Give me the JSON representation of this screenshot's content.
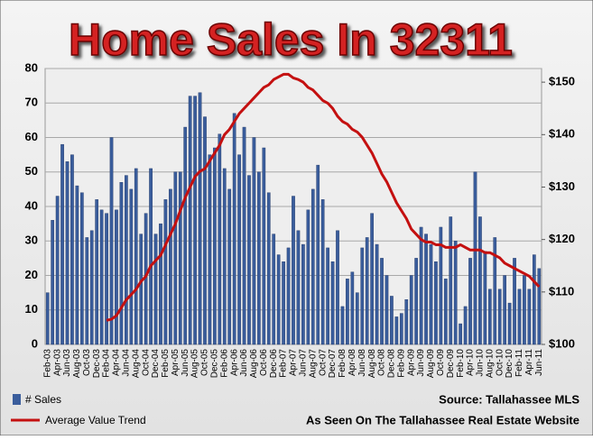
{
  "chart_data": {
    "type": "bar-line",
    "title": "Home Sales In 32311",
    "categories": [
      "Feb-03",
      null,
      "Apr-03",
      null,
      "Jun-03",
      null,
      "Aug-03",
      null,
      "Oct-03",
      null,
      "Dec-03",
      null,
      "Feb-04",
      null,
      "Apr-04",
      null,
      "Jun-04",
      null,
      "Aug-04",
      null,
      "Oct-04",
      null,
      "Dec-04",
      null,
      "Feb-05",
      null,
      "Apr-05",
      null,
      "Jun-05",
      null,
      "Aug-05",
      null,
      "Oct-05",
      null,
      "Dec-05",
      null,
      "Feb-06",
      null,
      "Apr-06",
      null,
      "Jun-06",
      null,
      "Aug-06",
      null,
      "Oct-06",
      null,
      "Dec-06",
      null,
      "Feb-07",
      null,
      "Apr-07",
      null,
      "Jun-07",
      null,
      "Aug-07",
      null,
      "Oct-07",
      null,
      "Dec-07",
      null,
      "Feb-08",
      null,
      "Apr-08",
      null,
      "Jun-08",
      null,
      "Aug-08",
      null,
      "Oct-08",
      null,
      "Dec-08",
      null,
      "Feb-09",
      null,
      "Apr-09",
      null,
      "Jun-09",
      null,
      "Aug-09",
      null,
      "Oct-09",
      null,
      "Dec-09",
      null,
      "Feb-10",
      null,
      "Apr-10",
      null,
      "Jun-10",
      null,
      "Aug-10",
      null,
      "Oct-10",
      null,
      "Dec-10",
      null,
      "Feb-11",
      null,
      "Apr-11",
      null,
      "Jun-11"
    ],
    "series": [
      {
        "name": "# Sales",
        "kind": "bar",
        "color": "#3a5d9c",
        "values": [
          15,
          36,
          43,
          58,
          53,
          55,
          46,
          44,
          31,
          33,
          42,
          39,
          38,
          60,
          39,
          47,
          49,
          45,
          51,
          32,
          38,
          51,
          32,
          35,
          42,
          45,
          50,
          50,
          63,
          72,
          72,
          73,
          66,
          55,
          57,
          61,
          51,
          45,
          67,
          55,
          63,
          49,
          60,
          50,
          57,
          44,
          32,
          26,
          24,
          28,
          43,
          33,
          29,
          39,
          45,
          52,
          42,
          28,
          24,
          33,
          11,
          19,
          21,
          15,
          28,
          31,
          38,
          29,
          25,
          20,
          14,
          8,
          9,
          13,
          20,
          25,
          34,
          32,
          29,
          24,
          34,
          19,
          37,
          30,
          6,
          11,
          25,
          50,
          37,
          27,
          16,
          31,
          16,
          20,
          12,
          25,
          16,
          20,
          16,
          26,
          22
        ]
      },
      {
        "name": "Average Value Trend",
        "kind": "line",
        "axis": "y2",
        "color": "#c41010",
        "values": [
          null,
          null,
          null,
          null,
          null,
          null,
          null,
          null,
          null,
          null,
          null,
          null,
          104.6,
          104.8,
          105.5,
          107,
          108.5,
          109.5,
          110.5,
          112,
          113,
          115,
          116,
          117,
          119,
          121,
          123,
          125.5,
          128,
          130,
          132,
          133,
          133.5,
          135,
          136.5,
          138,
          140,
          141,
          142.5,
          144,
          145,
          146,
          147,
          148,
          149,
          149.5,
          150.5,
          151,
          151.5,
          151.5,
          150.8,
          150.5,
          150,
          149,
          148.5,
          147.5,
          146.5,
          146,
          145,
          143.5,
          142.5,
          142,
          141,
          140.5,
          139.5,
          138,
          136.5,
          134.5,
          132.5,
          131,
          129,
          127,
          125.5,
          124,
          122,
          121,
          120,
          119.5,
          119.5,
          119,
          119,
          118.5,
          118.5,
          118.5,
          119,
          118.5,
          118,
          118,
          118,
          117.5,
          117.5,
          117,
          116.5,
          115.5,
          115,
          114.5,
          114,
          113.5,
          113,
          112,
          111
        ]
      }
    ],
    "ylim": [
      0,
      80
    ],
    "yticks": [
      0,
      10,
      20,
      30,
      40,
      50,
      60,
      70,
      80
    ],
    "y2lim": [
      100,
      152.6
    ],
    "y2ticks": [
      {
        "value": 100,
        "label": "$100"
      },
      {
        "value": 110,
        "label": "$110"
      },
      {
        "value": 120,
        "label": "$120"
      },
      {
        "value": 130,
        "label": "$130"
      },
      {
        "value": 140,
        "label": "$140"
      },
      {
        "value": 150,
        "label": "$150"
      }
    ],
    "grid": true,
    "source": "Source: Tallahassee MLS",
    "website": "As Seen On The Tallahassee Real Estate Website"
  }
}
